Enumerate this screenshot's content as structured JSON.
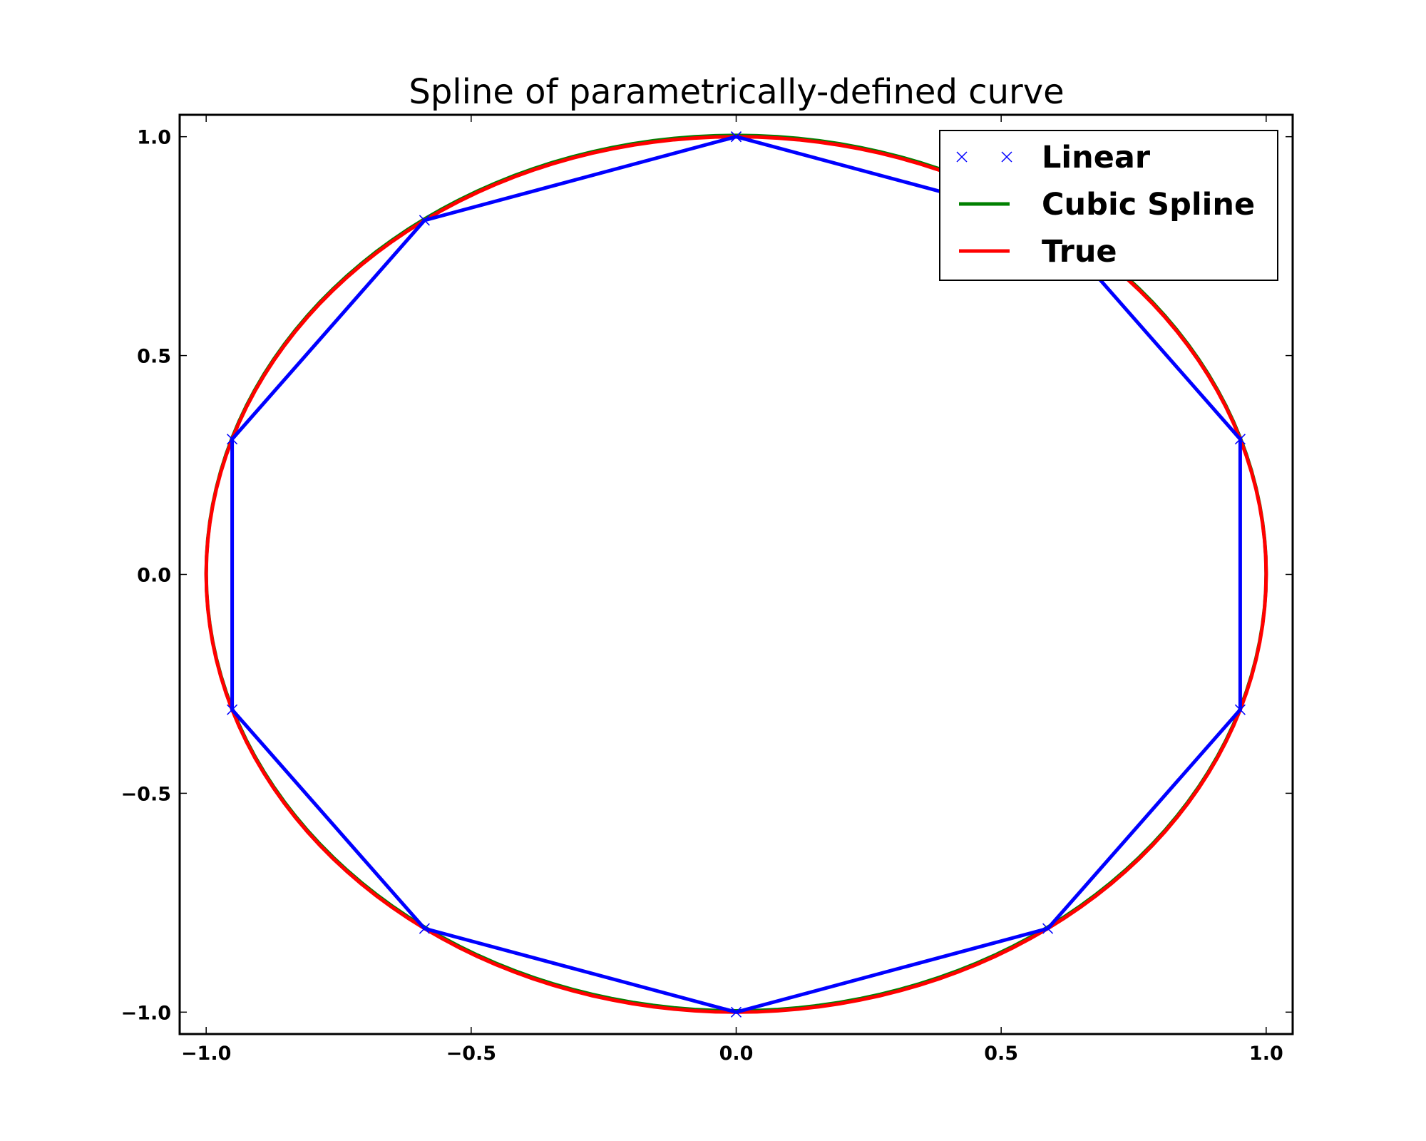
{
  "chart_data": {
    "type": "line",
    "title": "Spline of parametrically-defined curve",
    "xlabel": "",
    "ylabel": "",
    "xlim": [
      -1.05,
      1.05
    ],
    "ylim": [
      -1.05,
      1.05
    ],
    "x_ticks": [
      -1.0,
      -0.5,
      0.0,
      0.5,
      1.0
    ],
    "y_ticks": [
      -1.0,
      -0.5,
      0.0,
      0.5,
      1.0
    ],
    "x_tick_labels": [
      "−1.0",
      "−0.5",
      "0.0",
      "0.5",
      "1.0"
    ],
    "y_tick_labels": [
      "−1.0",
      "−0.5",
      "0.0",
      "0.5",
      "1.0"
    ],
    "grid": false,
    "legend_position": "top-right",
    "series": [
      {
        "name": "Linear",
        "color": "#0000ff",
        "marker": "x",
        "x": [
          0.0,
          0.588,
          0.951,
          0.951,
          0.588,
          0.0,
          -0.588,
          -0.951,
          -0.951,
          -0.588,
          0.0
        ],
        "y": [
          1.0,
          0.809,
          0.309,
          -0.309,
          -0.809,
          -1.0,
          -0.809,
          -0.309,
          0.309,
          0.809,
          1.0
        ]
      },
      {
        "name": "Cubic Spline",
        "color": "#008000",
        "curve": "circle",
        "radius": 1.0
      },
      {
        "name": "True",
        "color": "#ff0000",
        "curve": "circle",
        "radius": 1.0
      }
    ]
  }
}
